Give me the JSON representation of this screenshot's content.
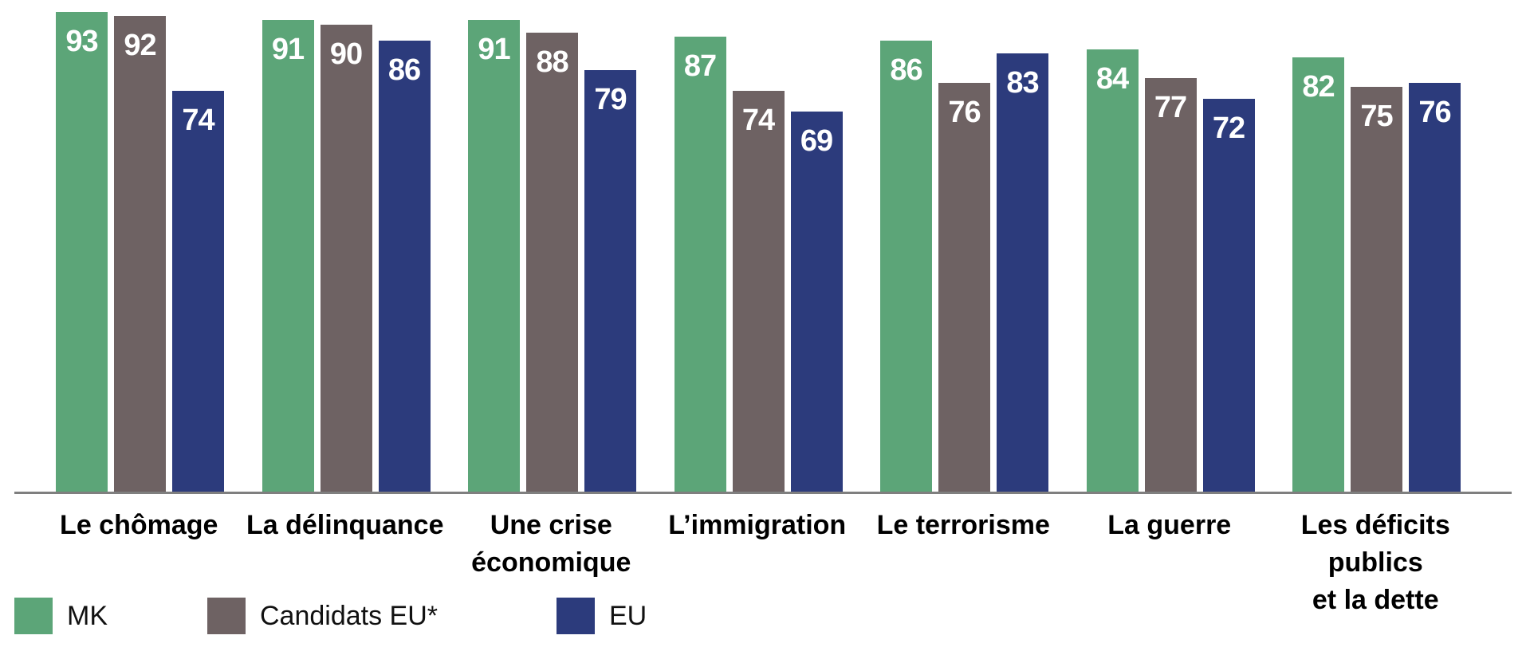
{
  "chart_data": {
    "type": "bar",
    "title": "",
    "categories": [
      "Le chômage",
      "La délinquance",
      "Une crise\néconomique",
      "L’immigration",
      "Le terrorisme",
      "La guerre",
      "Les déficits\npublics\net la dette"
    ],
    "series": [
      {
        "name": "MK",
        "color": "#5CA578",
        "values": [
          93,
          91,
          91,
          87,
          86,
          84,
          82
        ]
      },
      {
        "name": "Candidats EU*",
        "color": "#6E6263",
        "values": [
          92,
          90,
          88,
          74,
          76,
          77,
          75
        ]
      },
      {
        "name": "EU",
        "color": "#2C3B7C",
        "values": [
          74,
          86,
          79,
          69,
          83,
          72,
          76
        ]
      }
    ],
    "value_label_color": "#FFFFFF",
    "category_label_color": "#000000",
    "axis_line_color": "#7F7F7F",
    "y_axis": "hidden, values labeled directly on bars",
    "grid": "off",
    "legend_position": "bottom-left"
  }
}
